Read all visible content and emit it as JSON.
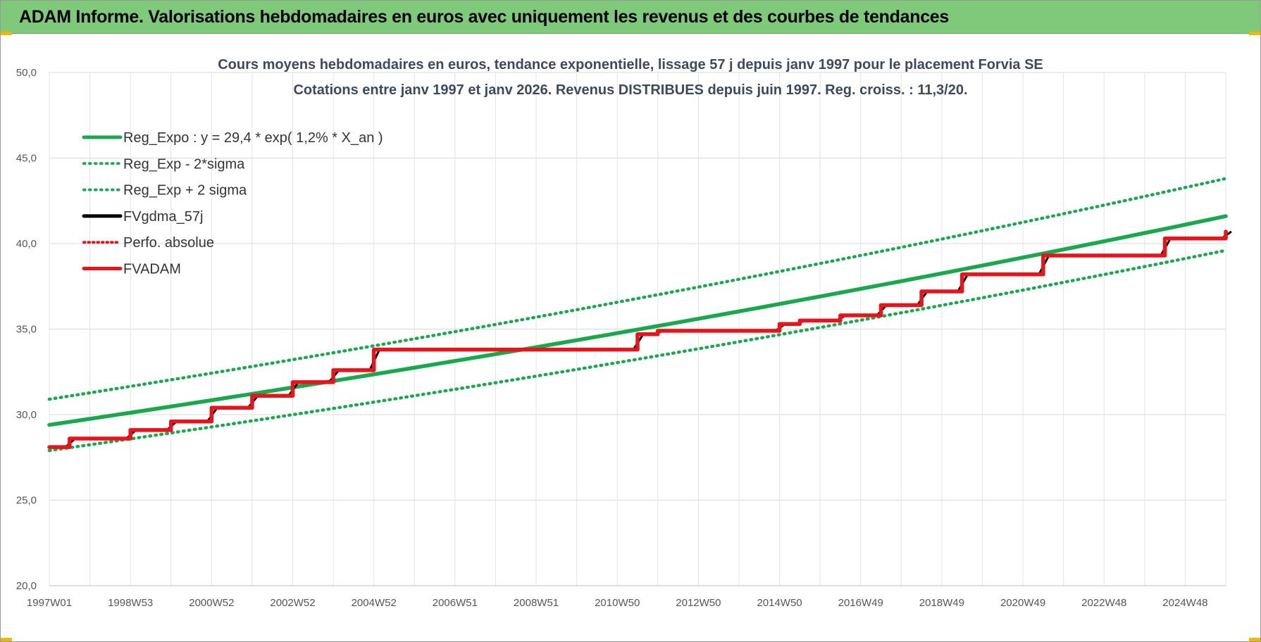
{
  "banner": {
    "title": "ADAM Informe. Valorisations hebdomadaires en euros avec uniquement les revenus et des courbes de tendances"
  },
  "colors": {
    "banner": "#7ec97a",
    "trend": "#1aa84f",
    "smoothed": "#000000",
    "adam": "#e8141c",
    "perf": "#e8141c"
  },
  "chart_data": {
    "type": "line",
    "title": "Cours moyens hebdomadaires en euros, tendance exponentielle, lissage 57 j depuis janv 1997  pour le placement Forvia SE",
    "subtitle": "Cotations entre janv 1997 et janv 2026. Revenus DISTRIBUES depuis juin 1997. Reg. croiss. : 11,3/20.",
    "xlabel": "",
    "ylabel": "",
    "x_range": [
      1997.0,
      2026.0
    ],
    "ylim": [
      20,
      50
    ],
    "yticks": [
      "20,0",
      "25,0",
      "30,0",
      "35,0",
      "40,0",
      "45,0",
      "50,0"
    ],
    "xticks": [
      "1997W01",
      "1998W53",
      "2000W52",
      "2002W52",
      "2004W52",
      "2006W51",
      "2008W51",
      "2010W50",
      "2012W50",
      "2014W50",
      "2016W49",
      "2018W49",
      "2020W49",
      "2022W48",
      "2024W48"
    ],
    "grid": true,
    "legend_position": "top-left",
    "series": [
      {
        "name": "Reg_Expo : y = 29,4 * exp( 1,2% *  X_an )",
        "style": "solid-green",
        "x": [
          1997.0,
          2026.0
        ],
        "y": [
          29.4,
          41.6
        ]
      },
      {
        "name": "Reg_Exp - 2*sigma",
        "style": "dotted-green",
        "x": [
          1997.0,
          2026.0
        ],
        "y": [
          27.9,
          39.6
        ]
      },
      {
        "name": "Reg_Exp + 2 sigma",
        "style": "dotted-green",
        "x": [
          1997.0,
          2026.0
        ],
        "y": [
          30.9,
          43.8
        ]
      },
      {
        "name": "FVgdma_57j",
        "style": "solid-black",
        "x": [],
        "y": []
      },
      {
        "name": "Perfo. absolue",
        "style": "dotted-red",
        "x": [],
        "y": []
      },
      {
        "name": "FVADAM",
        "style": "solid-red",
        "x": [
          1997.0,
          1997.5,
          1999.0,
          2000.0,
          2001.0,
          2002.0,
          2003.0,
          2004.0,
          2005.0,
          2011.5,
          2012.0,
          2015.0,
          2015.5,
          2016.5,
          2017.5,
          2018.5,
          2019.5,
          2021.5,
          2024.5,
          2026.0
        ],
        "y": [
          28.1,
          28.6,
          29.1,
          29.6,
          30.4,
          31.1,
          31.9,
          32.6,
          33.8,
          34.7,
          34.9,
          35.3,
          35.5,
          35.8,
          36.4,
          37.2,
          38.2,
          39.3,
          40.3,
          40.7
        ]
      }
    ]
  }
}
